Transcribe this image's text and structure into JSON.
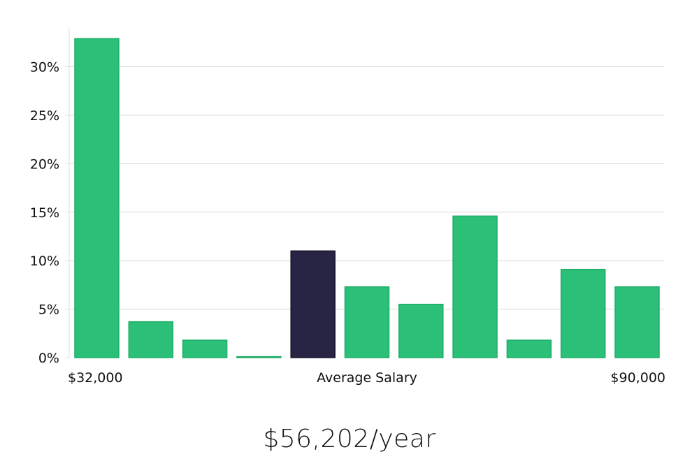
{
  "chart_data": {
    "type": "bar",
    "values": [
      32.9,
      3.7,
      1.8,
      0.1,
      11.0,
      7.3,
      5.5,
      14.6,
      1.8,
      9.1,
      7.3
    ],
    "highlight_index": 4,
    "ylim": [
      0,
      34
    ],
    "yticks": [
      0,
      5,
      10,
      15,
      20,
      25,
      30
    ],
    "ytick_labels": [
      "0%",
      "5%",
      "10%",
      "15%",
      "20%",
      "25%",
      "30%"
    ],
    "x_labels": {
      "left": "$32,000",
      "center": "Average Salary",
      "right": "$90,000"
    },
    "grid": true,
    "colors": {
      "bar": "#2bbf77",
      "bar_edge": "#1fae68",
      "highlight": "#282544",
      "highlight_edge": "#15132b"
    }
  },
  "average_salary": "$56,202/year"
}
